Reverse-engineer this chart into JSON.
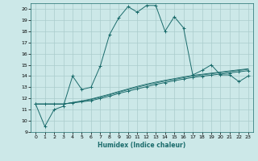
{
  "xlabel": "Humidex (Indice chaleur)",
  "bg_color": "#cce8e8",
  "grid_color": "#aacccc",
  "line_color": "#1a6b6b",
  "xlim": [
    -0.5,
    23.5
  ],
  "ylim": [
    9,
    20.5
  ],
  "xticks": [
    0,
    1,
    2,
    3,
    4,
    5,
    6,
    7,
    8,
    9,
    10,
    11,
    12,
    13,
    14,
    15,
    16,
    17,
    18,
    19,
    20,
    21,
    22,
    23
  ],
  "yticks": [
    9,
    10,
    11,
    12,
    13,
    14,
    15,
    16,
    17,
    18,
    19,
    20
  ],
  "main_x": [
    0,
    1,
    2,
    3,
    4,
    5,
    6,
    7,
    8,
    9,
    10,
    11,
    12,
    13,
    14,
    15,
    16,
    17,
    18,
    19,
    20,
    21,
    22,
    23
  ],
  "main_y": [
    11.5,
    9.5,
    11.0,
    11.3,
    14.0,
    12.8,
    13.0,
    14.9,
    17.7,
    19.2,
    20.2,
    19.7,
    20.3,
    20.3,
    18.0,
    19.3,
    18.3,
    14.1,
    14.5,
    15.0,
    14.1,
    14.1,
    13.5,
    14.0
  ],
  "line2_x": [
    0,
    1,
    2,
    3,
    4,
    5,
    6,
    7,
    8,
    9,
    10,
    11,
    12,
    13,
    14,
    15,
    16,
    17,
    18,
    19,
    20,
    21,
    22,
    23
  ],
  "line2_y": [
    11.5,
    11.5,
    11.5,
    11.5,
    11.6,
    11.7,
    11.8,
    12.0,
    12.2,
    12.45,
    12.65,
    12.85,
    13.05,
    13.25,
    13.42,
    13.58,
    13.73,
    13.88,
    13.98,
    14.08,
    14.18,
    14.28,
    14.38,
    14.48
  ],
  "line3_x": [
    0,
    1,
    2,
    3,
    4,
    5,
    6,
    7,
    8,
    9,
    10,
    11,
    12,
    13,
    14,
    15,
    16,
    17,
    18,
    19,
    20,
    21,
    22,
    23
  ],
  "line3_y": [
    11.5,
    11.5,
    11.5,
    11.5,
    11.62,
    11.74,
    11.9,
    12.1,
    12.32,
    12.56,
    12.78,
    13.0,
    13.2,
    13.38,
    13.55,
    13.7,
    13.85,
    14.0,
    14.1,
    14.2,
    14.3,
    14.4,
    14.5,
    14.6
  ],
  "line4_x": [
    0,
    1,
    2,
    3,
    4,
    5,
    6,
    7,
    8,
    9,
    10,
    11,
    12,
    13,
    14,
    15,
    16,
    17,
    18,
    19,
    20,
    21,
    22,
    23
  ],
  "line4_y": [
    11.5,
    11.5,
    11.5,
    11.5,
    11.64,
    11.78,
    11.95,
    12.16,
    12.38,
    12.62,
    12.85,
    13.08,
    13.28,
    13.46,
    13.62,
    13.77,
    13.92,
    14.06,
    14.16,
    14.26,
    14.36,
    14.46,
    14.56,
    14.65
  ]
}
